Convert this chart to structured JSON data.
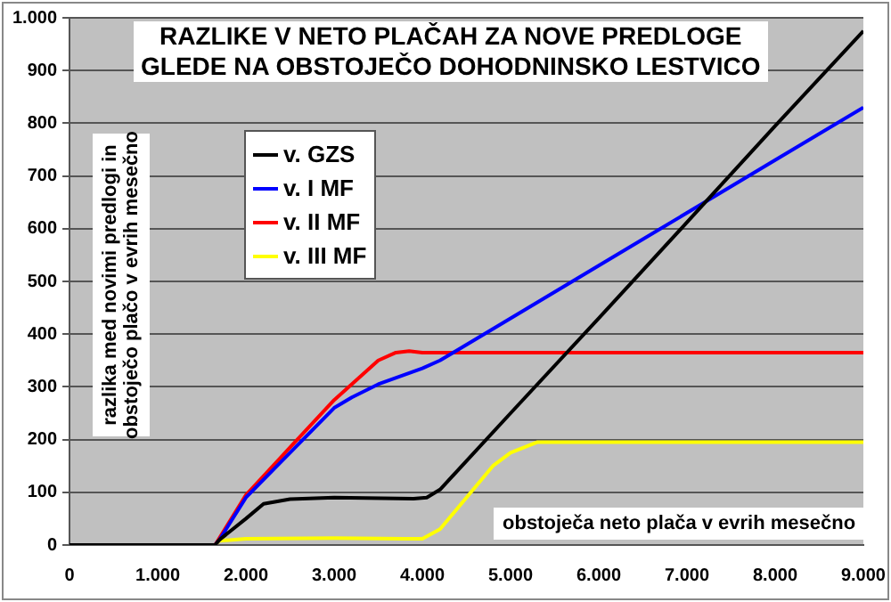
{
  "chart_data": {
    "type": "line",
    "title": "RAZLIKE V NETO PLAČAH ZA NOVE PREDLOGE\nGLEDE NA OBSTOJEČO DOHODNINSKO LESTVICO",
    "xlabel": "obstoječa neto plača v evrih mesečno",
    "ylabel": "razlika med novimi predlogi in\nobstoječo plačo v evrih mesečno",
    "xlim": [
      0,
      9000
    ],
    "xticks": [
      0,
      {
        "value": 1000,
        "label": "1.000"
      },
      {
        "value": 2000,
        "label": "2.000"
      },
      {
        "value": 3000,
        "label": "3.000"
      },
      {
        "value": 4000,
        "label": "4.000"
      },
      {
        "value": 5000,
        "label": "5.000"
      },
      {
        "value": 6000,
        "label": "6.000"
      },
      {
        "value": 7000,
        "label": "7.000"
      },
      {
        "value": 8000,
        "label": "8.000"
      },
      {
        "value": 9000,
        "label": "9.000"
      }
    ],
    "ylim": [
      0,
      1000
    ],
    "yticks": [
      0,
      100,
      200,
      300,
      400,
      500,
      600,
      700,
      800,
      900,
      {
        "value": 1000,
        "label": "1.000"
      }
    ],
    "grid": "y",
    "legend": "top left",
    "marker": "none",
    "line_style": "solid",
    "series": [
      {
        "name": "v. GZS",
        "color": "#000000",
        "x": [
          0,
          1650,
          1700,
          2000,
          2200,
          2500,
          3000,
          3900,
          4050,
          4200,
          5000,
          6000,
          7000,
          8000,
          9000
        ],
        "values": [
          0,
          0,
          10,
          50,
          78,
          87,
          90,
          88,
          90,
          105,
          250,
          430,
          612,
          795,
          975
        ]
      },
      {
        "name": "v. I MF",
        "color": "#0000ff",
        "x": [
          0,
          1650,
          1700,
          2000,
          2500,
          3000,
          3200,
          3500,
          4000,
          4200,
          5000,
          6000,
          7000,
          8000,
          9000
        ],
        "values": [
          0,
          0,
          10,
          90,
          175,
          260,
          280,
          305,
          335,
          350,
          430,
          530,
          630,
          730,
          830
        ]
      },
      {
        "name": "v. II MF",
        "color": "#ff0000",
        "x": [
          0,
          1650,
          2000,
          2500,
          3000,
          3500,
          3700,
          3850,
          4000,
          9000
        ],
        "values": [
          0,
          0,
          95,
          185,
          275,
          350,
          365,
          368,
          365,
          365
        ]
      },
      {
        "name": "v. III MF",
        "color": "#ffff00",
        "x": [
          0,
          1650,
          1700,
          2000,
          3000,
          3800,
          4000,
          4200,
          4500,
          4800,
          5000,
          5300,
          9000
        ],
        "values": [
          0,
          0,
          8,
          12,
          13,
          12,
          12,
          30,
          90,
          150,
          175,
          195,
          195
        ]
      }
    ]
  }
}
